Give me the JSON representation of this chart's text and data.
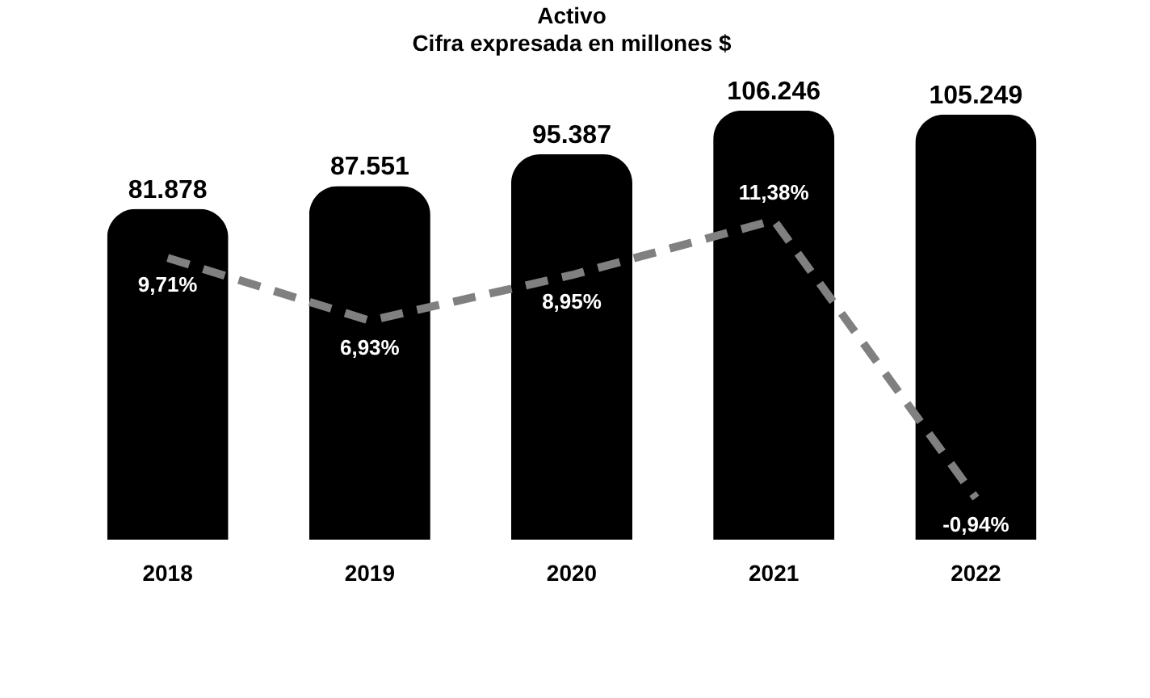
{
  "chart_data": {
    "type": "bar",
    "title": "Activo",
    "subtitle": "Cifra expresada en millones $",
    "categories": [
      "2018",
      "2019",
      "2020",
      "2021",
      "2022"
    ],
    "tick_labels": "x",
    "series": [
      {
        "color": "#000000",
        "values": [
          81878,
          87551,
          95387,
          106246,
          105249
        ],
        "value_labels": [
          "81.878",
          "87.551",
          "95.387",
          "106.246",
          "105.249"
        ]
      },
      {
        "type": "line",
        "axis": "y2",
        "color": "#808080",
        "line_style": "dashed",
        "values": [
          9.71,
          6.93,
          8.95,
          11.38,
          -0.94
        ],
        "value_labels": [
          "9,71%",
          "6,93%",
          "8,95%",
          "11,38%",
          "-0,94%"
        ]
      }
    ]
  }
}
